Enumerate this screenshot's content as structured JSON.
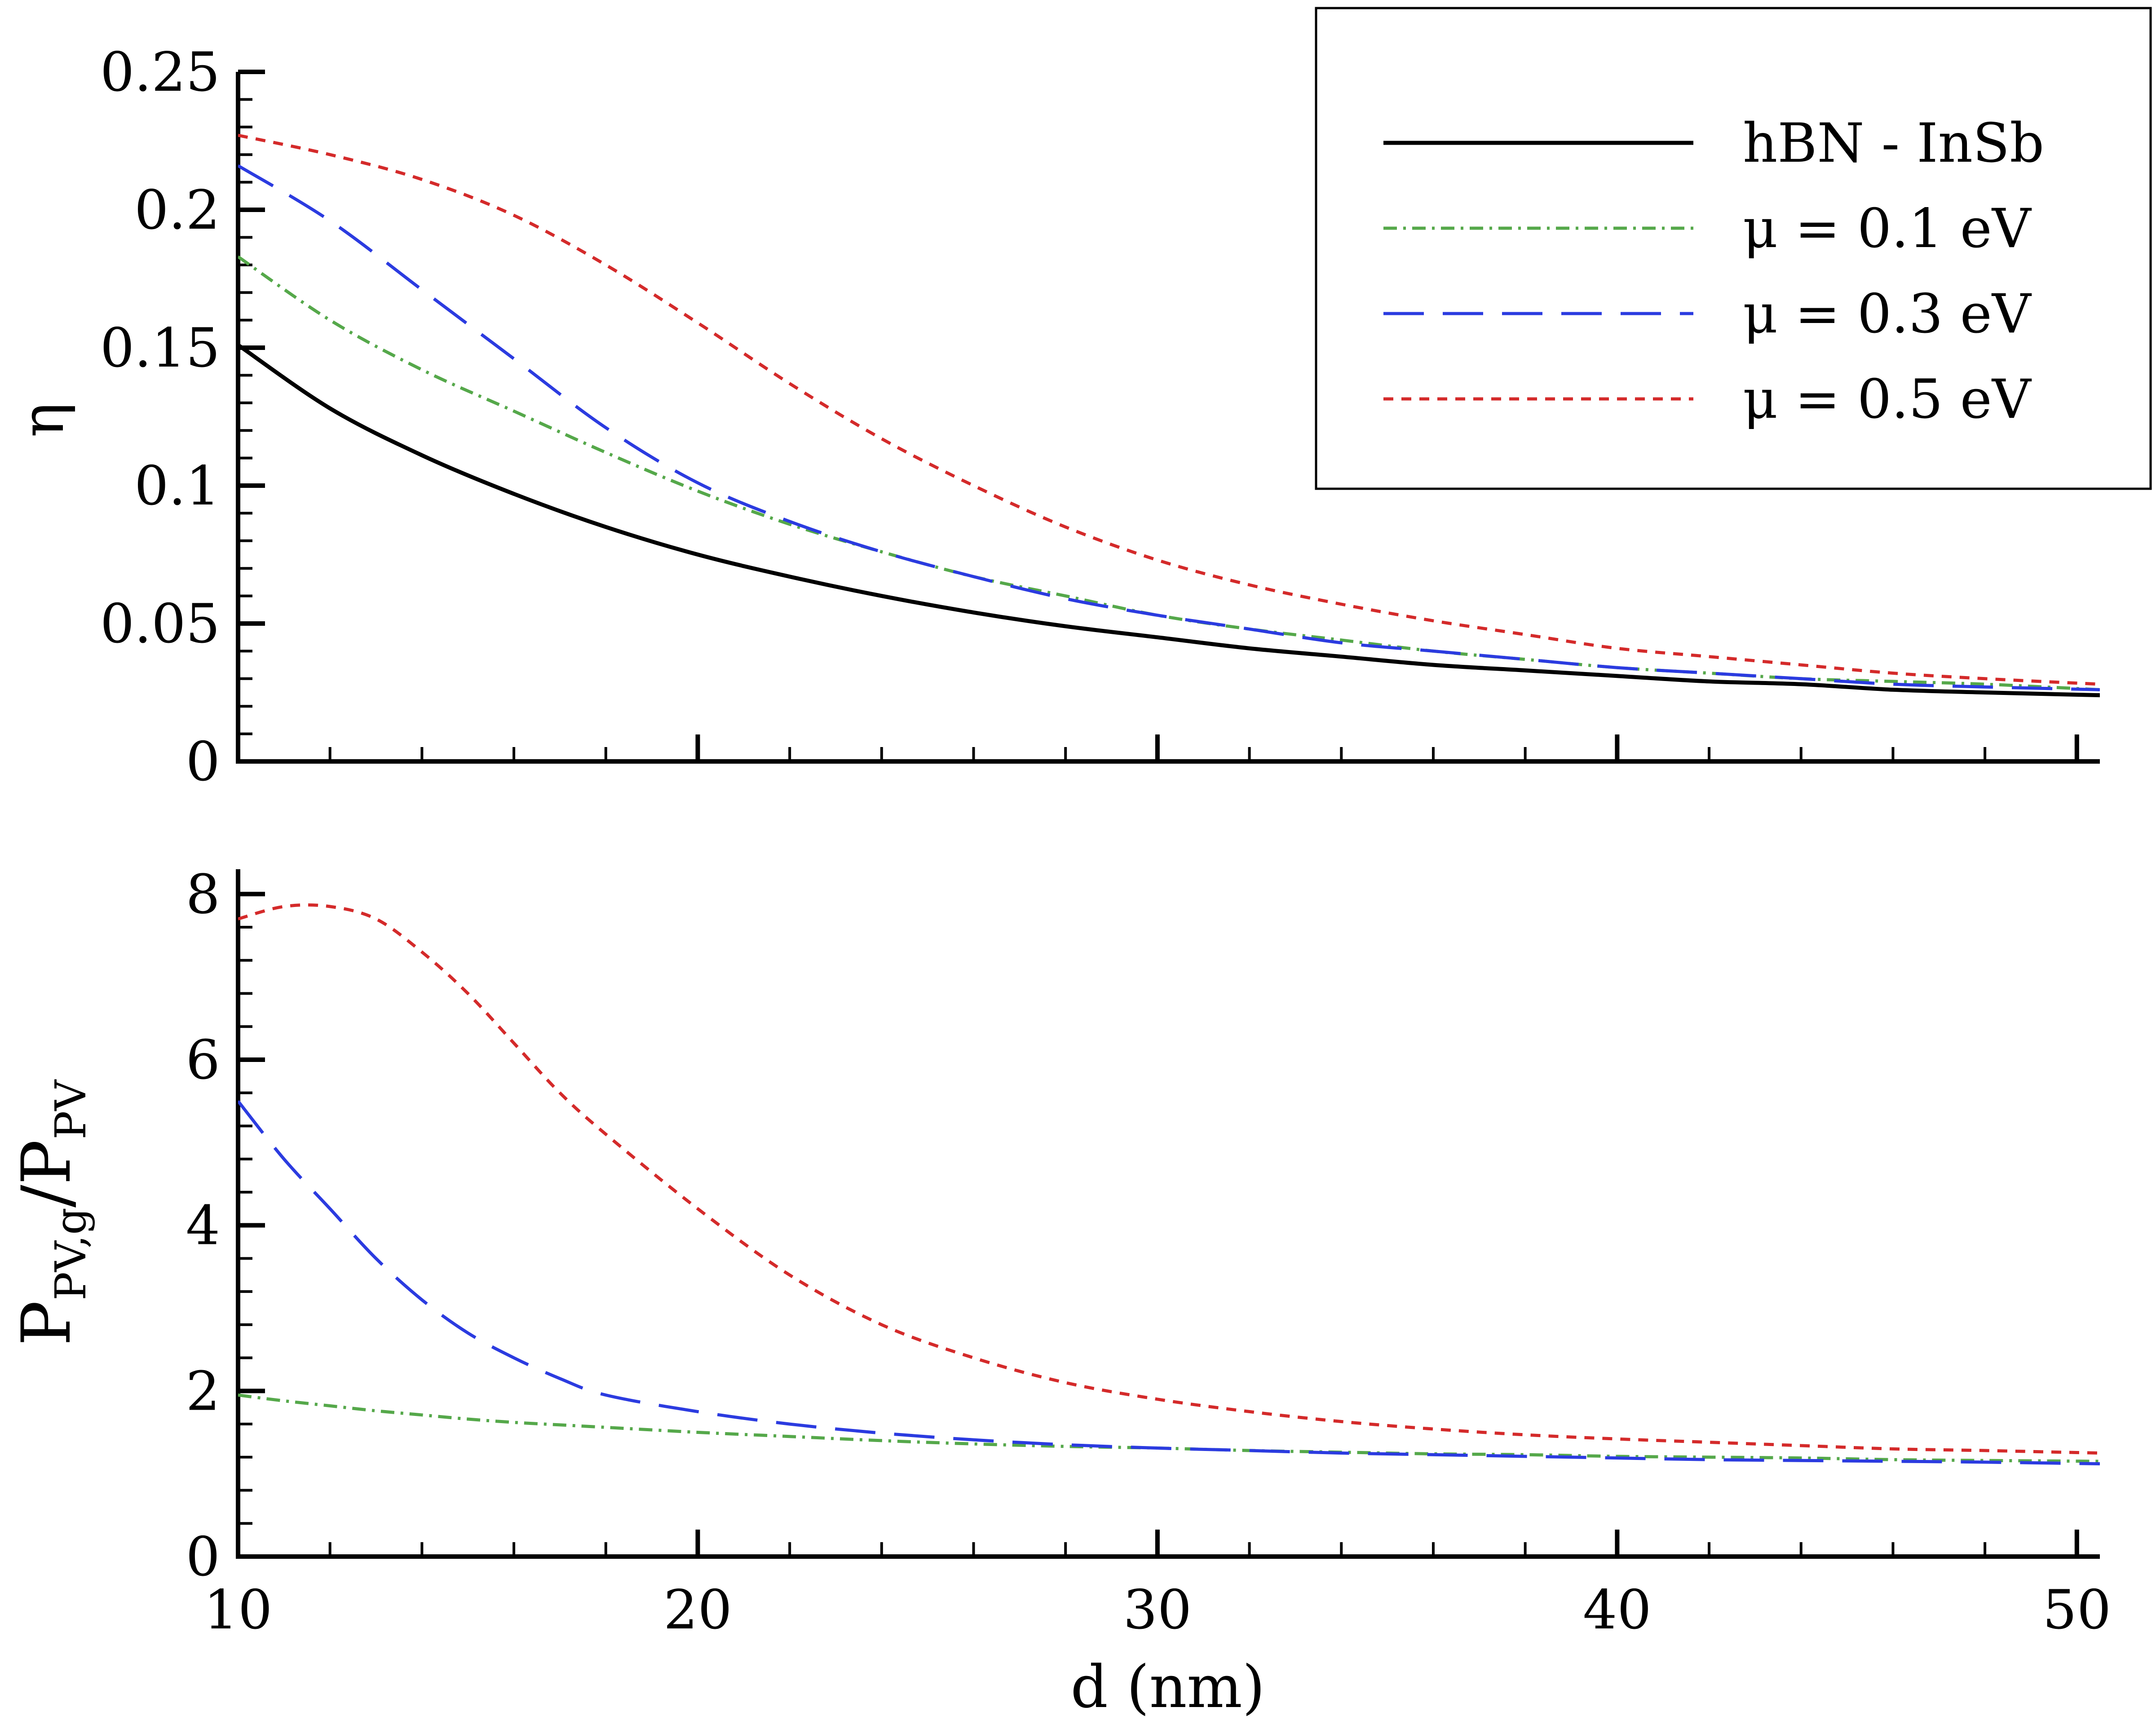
{
  "chart_data": [
    {
      "id": "top",
      "type": "line",
      "title": "",
      "xlabel": "",
      "ylabel": "η",
      "xlim": [
        10,
        50.5
      ],
      "ylim": [
        0,
        0.25
      ],
      "grid": false,
      "x_ticks": [
        10,
        20,
        30,
        40,
        50
      ],
      "x_tick_labels_shown": false,
      "y_ticks": [
        0,
        0.05,
        0.1,
        0.15,
        0.2,
        0.25
      ],
      "y_tick_labels": [
        "0",
        "0.05",
        "0.1",
        "0.15",
        "0.2",
        "0.25"
      ],
      "legend": {
        "placement": "top-right",
        "entries": [
          "hBN - InSb",
          "μ = 0.1 eV",
          "μ = 0.3 eV",
          "μ = 0.5 eV"
        ]
      },
      "x": [
        10,
        12,
        14,
        16,
        18,
        20,
        22,
        24,
        26,
        28,
        30,
        32,
        34,
        36,
        38,
        40,
        42,
        44,
        46,
        48,
        50.5
      ],
      "series": [
        {
          "name": "hBN - InSb",
          "color": "#000000",
          "dash": "solid",
          "values": [
            0.151,
            0.128,
            0.111,
            0.097,
            0.085,
            0.075,
            0.067,
            0.06,
            0.054,
            0.049,
            0.045,
            0.041,
            0.038,
            0.035,
            0.033,
            0.031,
            0.029,
            0.028,
            0.026,
            0.025,
            0.024
          ]
        },
        {
          "name": "μ = 0.1 eV",
          "color": "#55a84a",
          "dash": "dashdot",
          "values": [
            0.183,
            0.16,
            0.142,
            0.127,
            0.112,
            0.098,
            0.086,
            0.076,
            0.067,
            0.06,
            0.053,
            0.048,
            0.044,
            0.04,
            0.037,
            0.034,
            0.032,
            0.03,
            0.029,
            0.028,
            0.026
          ]
        },
        {
          "name": "μ = 0.3 eV",
          "color": "#2b3be0",
          "dash": "longdash",
          "values": [
            0.216,
            0.196,
            0.171,
            0.146,
            0.121,
            0.101,
            0.087,
            0.076,
            0.067,
            0.059,
            0.053,
            0.048,
            0.043,
            0.04,
            0.037,
            0.034,
            0.032,
            0.03,
            0.028,
            0.027,
            0.026
          ]
        },
        {
          "name": "μ = 0.5 eV",
          "color": "#d42a2a",
          "dash": "shortdash",
          "values": [
            0.227,
            0.22,
            0.211,
            0.198,
            0.18,
            0.159,
            0.137,
            0.117,
            0.1,
            0.085,
            0.073,
            0.064,
            0.057,
            0.051,
            0.046,
            0.041,
            0.038,
            0.035,
            0.032,
            0.03,
            0.028
          ]
        }
      ]
    },
    {
      "id": "bottom",
      "type": "line",
      "title": "",
      "xlabel": "d (nm)",
      "ylabel_main": "P",
      "ylabel_main_sub": "PV,g",
      "ylabel_slash": "/",
      "ylabel_denom": "P",
      "ylabel_denom_sub": "PV",
      "xlim": [
        10,
        50.5
      ],
      "ylim": [
        0,
        8.3
      ],
      "grid": false,
      "x_ticks": [
        10,
        20,
        30,
        40,
        50
      ],
      "x_tick_labels": [
        "10",
        "20",
        "30",
        "40",
        "50"
      ],
      "y_ticks": [
        0,
        2,
        4,
        6,
        8
      ],
      "y_tick_labels": [
        "0",
        "2",
        "4",
        "6",
        "8"
      ],
      "x": [
        10,
        11,
        12,
        13,
        14,
        15,
        16,
        17,
        18,
        20,
        22,
        24,
        26,
        28,
        30,
        32,
        34,
        36,
        38,
        40,
        42,
        44,
        46,
        48,
        50.5
      ],
      "series": [
        {
          "name": "μ = 0.1 eV",
          "color": "#55a84a",
          "dash": "dashdot",
          "values": [
            1.95,
            1.88,
            1.82,
            1.76,
            1.71,
            1.66,
            1.62,
            1.59,
            1.56,
            1.5,
            1.45,
            1.4,
            1.36,
            1.33,
            1.31,
            1.28,
            1.26,
            1.24,
            1.23,
            1.21,
            1.2,
            1.19,
            1.17,
            1.16,
            1.15
          ]
        },
        {
          "name": "μ = 0.3 eV",
          "color": "#2b3be0",
          "dash": "longdash",
          "values": [
            5.5,
            4.8,
            4.2,
            3.6,
            3.1,
            2.7,
            2.4,
            2.15,
            1.95,
            1.75,
            1.6,
            1.49,
            1.41,
            1.35,
            1.31,
            1.28,
            1.25,
            1.23,
            1.21,
            1.19,
            1.17,
            1.16,
            1.15,
            1.14,
            1.12
          ]
        },
        {
          "name": "μ = 0.5 eV",
          "color": "#d42a2a",
          "dash": "shortdash",
          "values": [
            7.7,
            7.85,
            7.85,
            7.7,
            7.3,
            6.8,
            6.2,
            5.6,
            5.1,
            4.2,
            3.4,
            2.8,
            2.4,
            2.1,
            1.9,
            1.75,
            1.63,
            1.54,
            1.47,
            1.42,
            1.38,
            1.34,
            1.3,
            1.28,
            1.25
          ]
        }
      ]
    }
  ]
}
